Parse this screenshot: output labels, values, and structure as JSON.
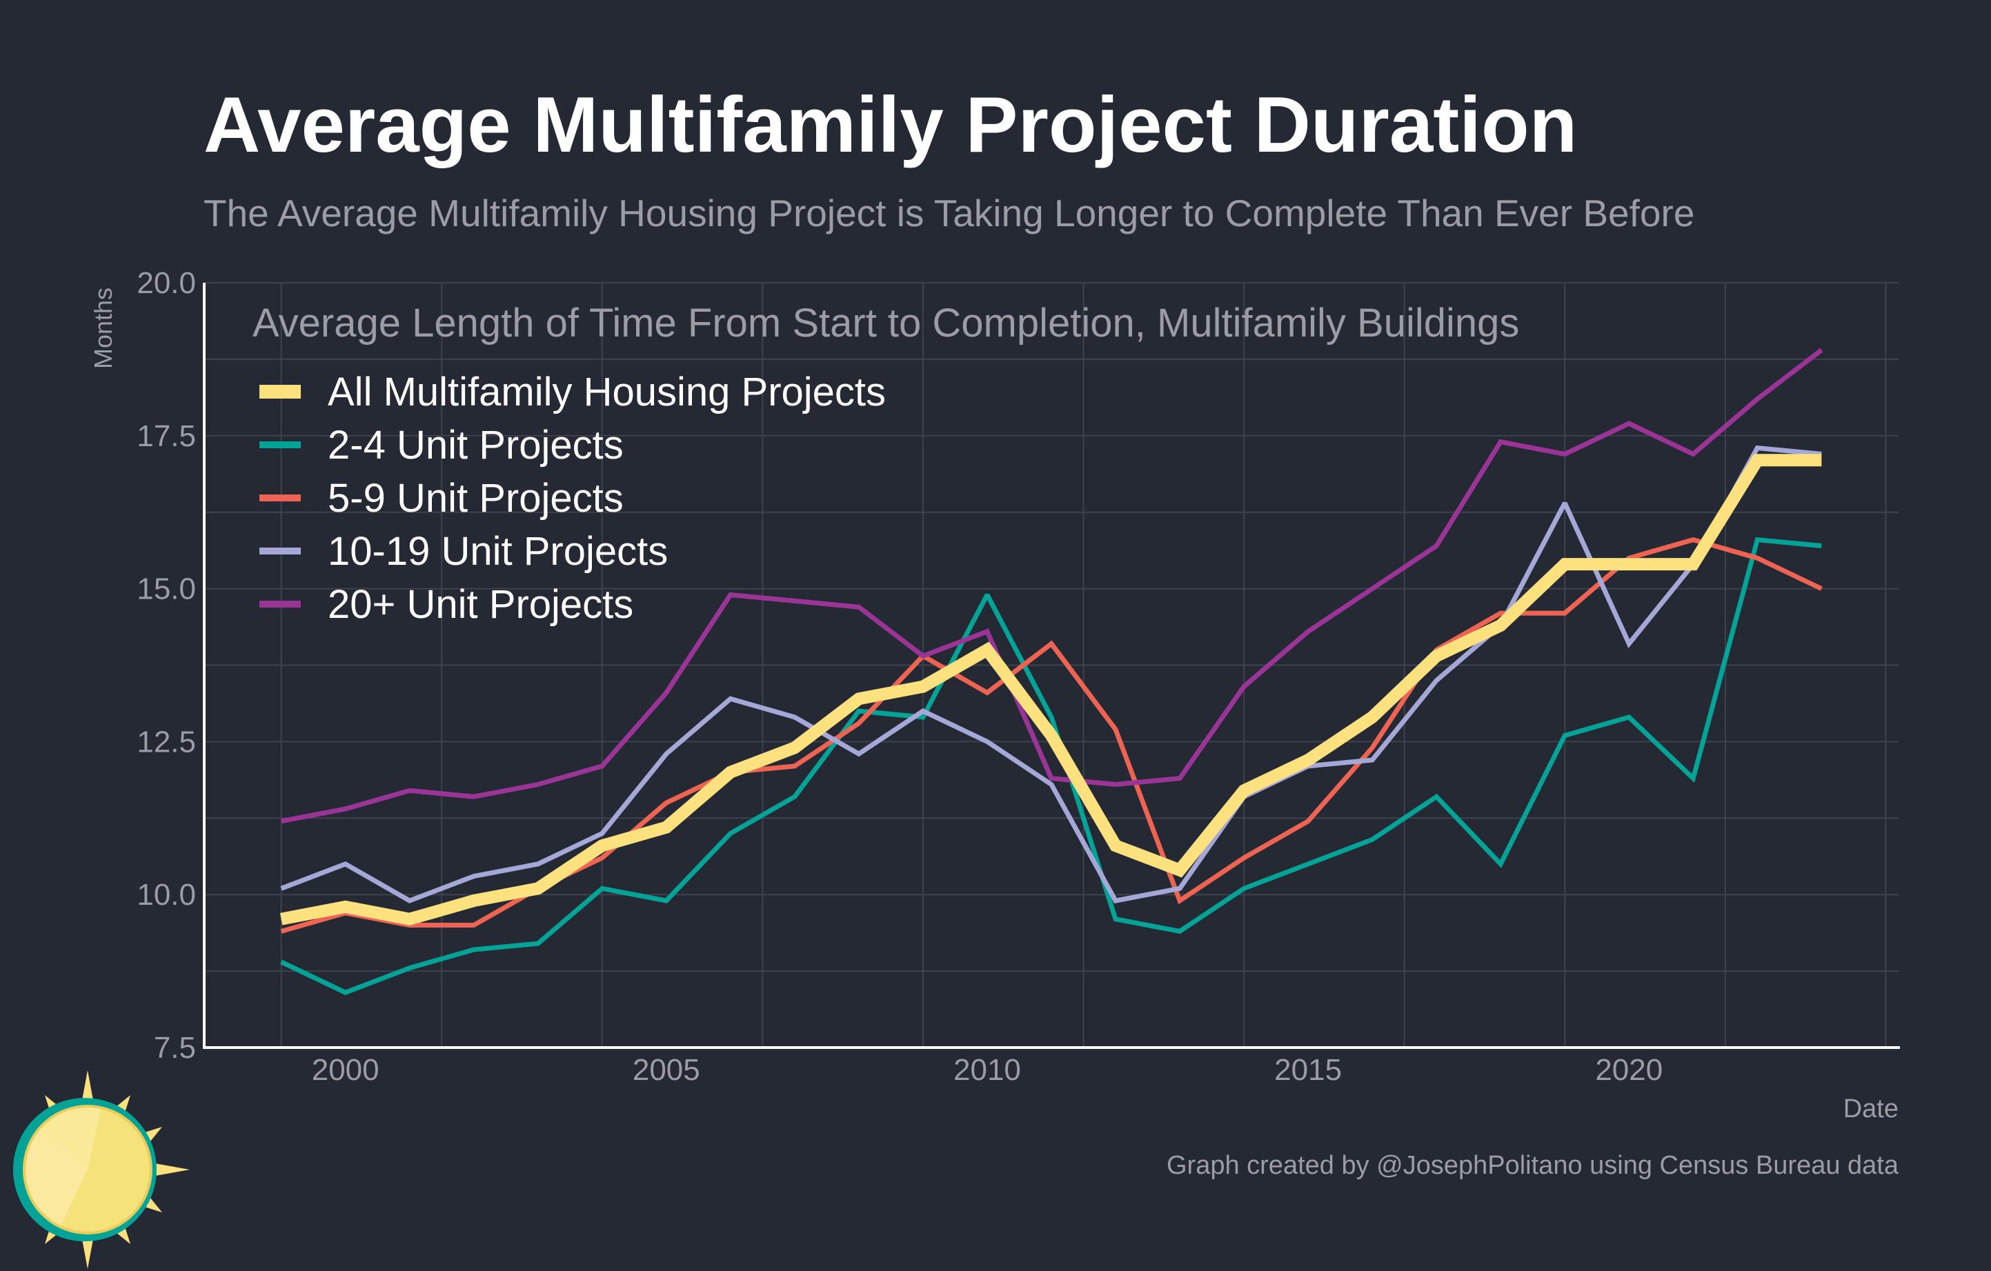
{
  "title": "Average Multifamily Project Duration",
  "subtitle": "The Average Multifamily Housing Project is Taking Longer to Complete Than Ever Before",
  "credit": "Graph created by @JosephPolitano using Census Bureau data",
  "colors": {
    "background": "#252933",
    "axis": "#ffffff",
    "grid": "#3e424c",
    "muted_text": "#9a9da6"
  },
  "chart_data": {
    "type": "line",
    "title": "Average Length of Time From Start to Completion, Multifamily Buildings",
    "xlabel": "Date",
    "ylabel": "Months",
    "xlim": [
      1997.8,
      2024.2
    ],
    "ylim": [
      7.5,
      20.0
    ],
    "xticks": [
      2000,
      2005,
      2010,
      2015,
      2020
    ],
    "xtick_labels": [
      "2000",
      "2005",
      "2010",
      "2015",
      "2020"
    ],
    "yticks": [
      7.5,
      10.0,
      12.5,
      15.0,
      17.5,
      20.0
    ],
    "ytick_labels": [
      "7.5",
      "10.0",
      "12.5",
      "15.0",
      "17.5",
      "20.0"
    ],
    "grid": true,
    "legend_position": "top-left",
    "x": [
      1999,
      2000,
      2001,
      2002,
      2003,
      2004,
      2005,
      2006,
      2007,
      2008,
      2009,
      2010,
      2011,
      2012,
      2013,
      2014,
      2015,
      2016,
      2017,
      2018,
      2019,
      2020,
      2021,
      2022,
      2023
    ],
    "series": [
      {
        "name": "2-4 Unit Projects",
        "color": "#00a396",
        "width": 7,
        "values": [
          8.9,
          8.4,
          8.8,
          9.1,
          9.2,
          10.1,
          9.9,
          11.0,
          11.6,
          13.0,
          12.9,
          14.9,
          12.9,
          9.6,
          9.4,
          10.1,
          10.5,
          10.9,
          11.6,
          10.5,
          12.6,
          12.9,
          11.9,
          15.8,
          15.7
        ]
      },
      {
        "name": "5-9 Unit Projects",
        "color": "#ee6352",
        "width": 7,
        "values": [
          9.4,
          9.7,
          9.5,
          9.5,
          10.1,
          10.6,
          11.5,
          12.0,
          12.1,
          12.8,
          13.9,
          13.3,
          14.1,
          12.7,
          9.9,
          10.6,
          11.2,
          12.4,
          14.0,
          14.6,
          14.6,
          15.5,
          15.8,
          15.5,
          15.0
        ]
      },
      {
        "name": "10-19 Unit Projects",
        "color": "#a5a8d6",
        "width": 7,
        "values": [
          10.1,
          10.5,
          9.9,
          10.3,
          10.5,
          11.0,
          12.3,
          13.2,
          12.9,
          12.3,
          13.0,
          12.5,
          11.8,
          9.9,
          10.1,
          11.6,
          12.1,
          12.2,
          13.5,
          14.4,
          16.4,
          14.1,
          15.4,
          17.3,
          17.2
        ]
      },
      {
        "name": "20+ Unit Projects",
        "color": "#9a3597",
        "width": 7,
        "values": [
          11.2,
          11.4,
          11.7,
          11.6,
          11.8,
          12.1,
          13.3,
          14.9,
          14.8,
          14.7,
          13.9,
          14.3,
          11.9,
          11.8,
          11.9,
          13.4,
          14.3,
          15.0,
          15.7,
          17.4,
          17.2,
          17.7,
          17.2,
          18.1,
          18.9
        ]
      },
      {
        "name": "All Multifamily Housing Projects",
        "color": "#fde17e",
        "width": 18,
        "values": [
          9.6,
          9.8,
          9.6,
          9.9,
          10.1,
          10.8,
          11.1,
          12.0,
          12.4,
          13.2,
          13.4,
          14.0,
          12.6,
          10.8,
          10.4,
          11.7,
          12.2,
          12.9,
          13.9,
          14.4,
          15.4,
          15.4,
          15.4,
          17.1,
          17.1
        ]
      }
    ],
    "legend_order": [
      4,
      0,
      1,
      2,
      3
    ]
  }
}
